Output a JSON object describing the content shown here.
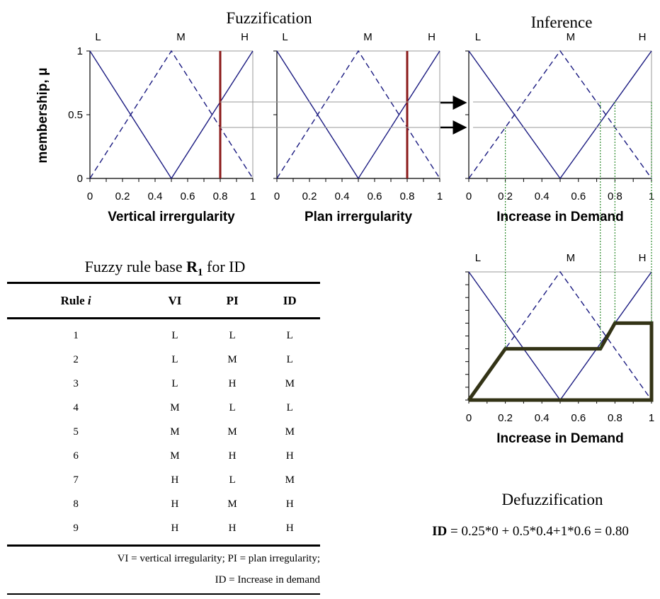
{
  "titles": {
    "fuzzification": "Fuzzification",
    "inference": "Inference",
    "defuzzification": "Defuzzification"
  },
  "ylabel": "membership, μ",
  "set_labels": [
    "L",
    "M",
    "H"
  ],
  "y_ticks": [
    "0",
    "0.5",
    "1"
  ],
  "x_ticks": [
    "0",
    "0.2",
    "0.4",
    "0.6",
    "0.8",
    "1"
  ],
  "colors": {
    "membership_line": "#1a1a80",
    "input_line": "#8b1a1a",
    "aggregate": "#333316",
    "guide": "#2e8b2e",
    "grid": "#999999"
  },
  "chart_data": [
    {
      "type": "line",
      "title": "",
      "xlabel": "Vertical irrergularity",
      "ylabel": "membership, μ",
      "xlim": [
        0,
        1
      ],
      "ylim": [
        0,
        1
      ],
      "series": [
        {
          "name": "L",
          "x": [
            0,
            0.5
          ],
          "y": [
            1,
            0
          ]
        },
        {
          "name": "M",
          "x": [
            0,
            0.5,
            1
          ],
          "y": [
            0,
            1,
            0
          ]
        },
        {
          "name": "H",
          "x": [
            0.5,
            1
          ],
          "y": [
            0,
            1
          ]
        }
      ],
      "input_value": 0.8,
      "memberships": {
        "M": 0.4,
        "H": 0.6
      }
    },
    {
      "type": "line",
      "title": "",
      "xlabel": "Plan irrergularity",
      "xlim": [
        0,
        1
      ],
      "ylim": [
        0,
        1
      ],
      "series": [
        {
          "name": "L",
          "x": [
            0,
            0.5
          ],
          "y": [
            1,
            0
          ]
        },
        {
          "name": "M",
          "x": [
            0,
            0.5,
            1
          ],
          "y": [
            0,
            1,
            0
          ]
        },
        {
          "name": "H",
          "x": [
            0.5,
            1
          ],
          "y": [
            0,
            1
          ]
        }
      ],
      "input_value": 0.8,
      "memberships": {
        "M": 0.4,
        "H": 0.6
      }
    },
    {
      "type": "line",
      "title": "",
      "xlabel": "Increase in Demand",
      "xlim": [
        0,
        1
      ],
      "ylim": [
        0,
        1
      ],
      "series": [
        {
          "name": "L",
          "x": [
            0,
            0.5
          ],
          "y": [
            1,
            0
          ]
        },
        {
          "name": "M",
          "x": [
            0,
            0.5,
            1
          ],
          "y": [
            0,
            1,
            0
          ]
        },
        {
          "name": "H",
          "x": [
            0.5,
            1
          ],
          "y": [
            0,
            1
          ]
        }
      ],
      "clip_levels": [
        0.4,
        0.6
      ]
    },
    {
      "type": "line",
      "title": "",
      "xlabel": "Increase in Demand",
      "xlim": [
        0,
        1
      ],
      "ylim": [
        0,
        1
      ],
      "series": [
        {
          "name": "L",
          "x": [
            0,
            0.5
          ],
          "y": [
            1,
            0
          ]
        },
        {
          "name": "M",
          "x": [
            0,
            0.5,
            1
          ],
          "y": [
            0,
            1,
            0
          ]
        },
        {
          "name": "H",
          "x": [
            0.5,
            1
          ],
          "y": [
            0,
            1
          ]
        },
        {
          "name": "aggregate",
          "x": [
            0,
            0.2,
            0.72,
            0.8,
            1,
            1,
            0
          ],
          "y": [
            0,
            0.4,
            0.4,
            0.6,
            0.6,
            0,
            0
          ]
        }
      ]
    }
  ],
  "rule_table": {
    "caption_pre": "Fuzzy rule base ",
    "caption_bold": "R",
    "caption_sub": "1",
    "caption_post": " for ID",
    "headers": {
      "rule_word": "Rule ",
      "rule_var": "i",
      "vi": "VI",
      "pi": "PI",
      "id": "ID"
    },
    "rows": [
      [
        "1",
        "L",
        "L",
        "L"
      ],
      [
        "2",
        "L",
        "M",
        "L"
      ],
      [
        "3",
        "L",
        "H",
        "M"
      ],
      [
        "4",
        "M",
        "L",
        "L"
      ],
      [
        "5",
        "M",
        "M",
        "M"
      ],
      [
        "6",
        "M",
        "H",
        "H"
      ],
      [
        "7",
        "H",
        "L",
        "M"
      ],
      [
        "8",
        "H",
        "M",
        "H"
      ],
      [
        "9",
        "H",
        "H",
        "H"
      ]
    ],
    "footnote_1": "VI = vertical irregularity;  PI = plan irregularity;",
    "footnote_2": "ID = Increase in demand"
  },
  "defuzz": {
    "label": "ID",
    "formula": " = 0.25*0 + 0.5*0.4+1*0.6 = 0.80"
  }
}
